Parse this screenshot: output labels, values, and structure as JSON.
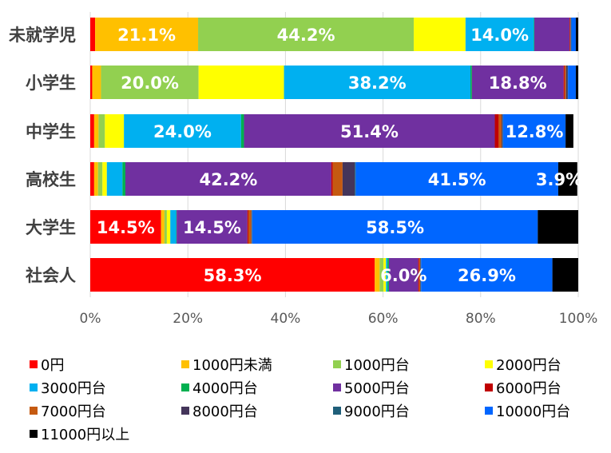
{
  "chart_data": {
    "type": "bar",
    "orientation": "horizontal",
    "stacked": true,
    "categories": [
      "未就学児",
      "小学生",
      "中学生",
      "高校生",
      "大学生",
      "社会人"
    ],
    "xlim": [
      0,
      100
    ],
    "x_ticks": [
      "0%",
      "20%",
      "40%",
      "60%",
      "80%",
      "100%"
    ],
    "grid": "vertical",
    "legend_position": "bottom",
    "series": [
      {
        "name": "0円",
        "color": "#ff0000",
        "values": [
          1.0,
          0.4,
          0.8,
          0.8,
          14.5,
          58.3
        ]
      },
      {
        "name": "1000円未満",
        "color": "#ffc000",
        "values": [
          21.1,
          1.8,
          0.9,
          0.8,
          0.7,
          1.0
        ]
      },
      {
        "name": "1000円台",
        "color": "#92d050",
        "values": [
          44.2,
          20.0,
          1.3,
          0.9,
          0.5,
          0.8
        ]
      },
      {
        "name": "2000円台",
        "color": "#ffff00",
        "values": [
          10.6,
          17.5,
          3.9,
          0.9,
          0.7,
          0.5
        ]
      },
      {
        "name": "3000円台",
        "color": "#00b0f0",
        "values": [
          14.0,
          38.2,
          24.0,
          3.2,
          1.2,
          0.3
        ]
      },
      {
        "name": "4000円台",
        "color": "#00b050",
        "values": [
          0.1,
          0.3,
          0.6,
          0.6,
          0.1,
          0.3
        ]
      },
      {
        "name": "5000円台",
        "color": "#7030a0",
        "values": [
          7.2,
          18.8,
          51.4,
          42.2,
          14.5,
          6.0
        ]
      },
      {
        "name": "6000円台",
        "color": "#c00000",
        "values": [
          0.1,
          0.2,
          0.8,
          0.3,
          0.2,
          0.2
        ]
      },
      {
        "name": "7000円台",
        "color": "#c55a11",
        "values": [
          0.1,
          0.3,
          0.6,
          2.0,
          0.6,
          0.2
        ]
      },
      {
        "name": "8000円台",
        "color": "#44355a",
        "values": [
          0.1,
          0.3,
          0.2,
          2.5,
          0.1,
          0.1
        ]
      },
      {
        "name": "9000円台",
        "color": "#1f5f7a",
        "values": [
          0.1,
          0.1,
          0.1,
          0.2,
          0.1,
          0.1
        ]
      },
      {
        "name": "10000円台",
        "color": "#0066ff",
        "values": [
          0.9,
          1.6,
          12.8,
          41.5,
          58.5,
          26.9
        ]
      },
      {
        "name": "11000円以上",
        "color": "#000000",
        "values": [
          0.5,
          0.5,
          1.6,
          3.9,
          8.3,
          5.3
        ]
      }
    ],
    "data_labels": [
      {
        "row": 0,
        "series": 1,
        "text": "21.1%"
      },
      {
        "row": 0,
        "series": 2,
        "text": "44.2%"
      },
      {
        "row": 0,
        "series": 4,
        "text": "14.0%"
      },
      {
        "row": 1,
        "series": 2,
        "text": "20.0%"
      },
      {
        "row": 1,
        "series": 4,
        "text": "38.2%"
      },
      {
        "row": 1,
        "series": 6,
        "text": "18.8%"
      },
      {
        "row": 2,
        "series": 4,
        "text": "24.0%"
      },
      {
        "row": 2,
        "series": 6,
        "text": "51.4%"
      },
      {
        "row": 2,
        "series": 11,
        "text": "12.8%"
      },
      {
        "row": 3,
        "series": 6,
        "text": "42.2%"
      },
      {
        "row": 3,
        "series": 11,
        "text": "41.5%"
      },
      {
        "row": 3,
        "series": 12,
        "text": "3.9%"
      },
      {
        "row": 4,
        "series": 0,
        "text": "14.5%"
      },
      {
        "row": 4,
        "series": 6,
        "text": "14.5%"
      },
      {
        "row": 4,
        "series": 11,
        "text": "58.5%"
      },
      {
        "row": 5,
        "series": 0,
        "text": "58.3%"
      },
      {
        "row": 5,
        "series": 6,
        "text": "6.0%"
      },
      {
        "row": 5,
        "series": 11,
        "text": "26.9%"
      }
    ]
  }
}
